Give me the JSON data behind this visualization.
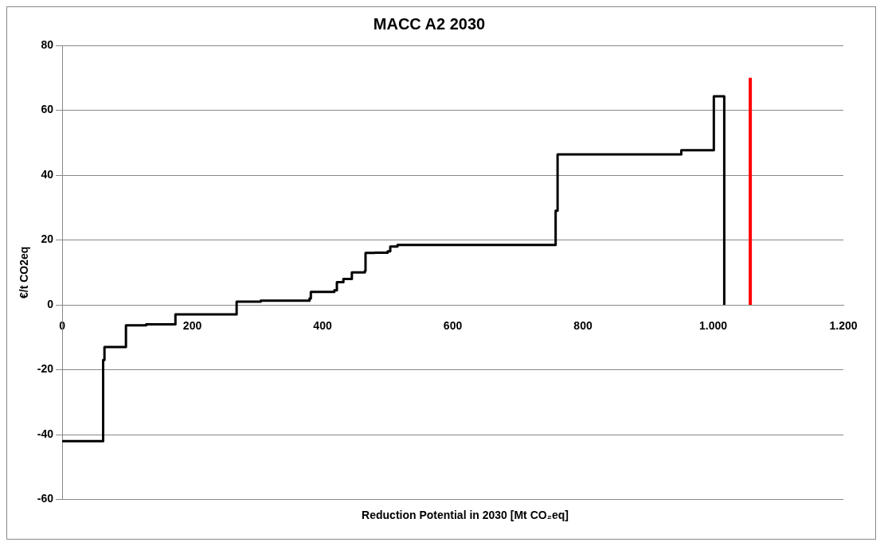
{
  "chart_data": {
    "type": "step",
    "title": "MACC A2 2030",
    "xlabel": "Reduction Potential in 2030 [Mt CO₂eq]",
    "ylabel": "€/t CO2eq",
    "xlim": [
      0,
      1200
    ],
    "xticks": [
      0,
      200,
      400,
      600,
      800,
      {
        "value": 1000,
        "label": "1.000"
      },
      {
        "value": 1200,
        "label": "1.200"
      }
    ],
    "ylim": [
      -60,
      80
    ],
    "yticks": [
      -60,
      -40,
      -20,
      0,
      20,
      40,
      60,
      80
    ],
    "grid": "y",
    "legend": false,
    "series": [
      {
        "color": "#000000",
        "x": [
          0,
          63,
          65,
          98,
          129,
          174,
          268,
          305,
          380,
          382,
          418,
          422,
          432,
          445,
          465,
          466,
          480,
          500,
          504,
          515,
          758,
          761,
          951,
          1001,
          1017
        ],
        "values": [
          -42,
          -17,
          -13,
          -6.3,
          -6,
          -2.9,
          1,
          1.3,
          2,
          4,
          4.5,
          7,
          8,
          10,
          10.5,
          16,
          16.1,
          16.5,
          18,
          18.5,
          29,
          46.4,
          47.7,
          64.3,
          0
        ]
      },
      {
        "type": "line",
        "color": "#ff0000",
        "x": [
          1057,
          1057
        ],
        "values": [
          0,
          70
        ]
      }
    ]
  }
}
